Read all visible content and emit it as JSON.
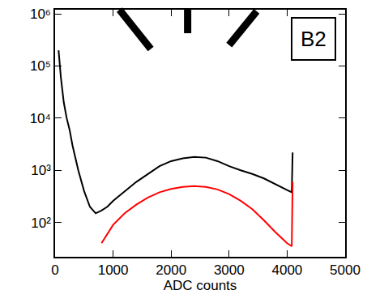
{
  "chart_data": {
    "type": "line",
    "x_label": "ADC counts",
    "annotations": [
      "B2"
    ],
    "log": "y",
    "grid": false,
    "x": [
      60,
      100,
      150,
      200,
      250,
      300,
      400,
      500,
      600,
      700,
      800,
      900,
      1000,
      1200,
      1400,
      1600,
      1800,
      2000,
      2200,
      2400,
      2600,
      2800,
      3000,
      3200,
      3400,
      3600,
      3800,
      4000,
      4080,
      4095
    ],
    "series": [
      {
        "color": "#000000",
        "values": [
          200000,
          60000,
          20000,
          10000,
          6000,
          3000,
          1000,
          400,
          200,
          150,
          170,
          200,
          260,
          400,
          600,
          850,
          1200,
          1500,
          1700,
          1800,
          1750,
          1500,
          1200,
          1000,
          850,
          700,
          550,
          420,
          380,
          2200
        ]
      },
      {
        "color": "#ff0000",
        "values": [
          null,
          null,
          null,
          null,
          null,
          null,
          null,
          null,
          null,
          null,
          40,
          60,
          90,
          150,
          220,
          300,
          380,
          440,
          480,
          500,
          480,
          430,
          350,
          260,
          180,
          110,
          65,
          40,
          35,
          600
        ]
      }
    ],
    "xlim": [
      0,
      5000
    ],
    "xticks": [
      0,
      1000,
      2000,
      3000,
      4000,
      5000
    ],
    "ylim": [
      22,
      1200000
    ],
    "yticks": [
      {
        "value": 100,
        "label": "10²"
      },
      {
        "value": 1000,
        "label": "10³"
      },
      {
        "value": 10000,
        "label": "10⁴"
      },
      {
        "value": 100000,
        "label": "10⁵"
      },
      {
        "value": 1000000,
        "label": "10⁶"
      }
    ]
  }
}
